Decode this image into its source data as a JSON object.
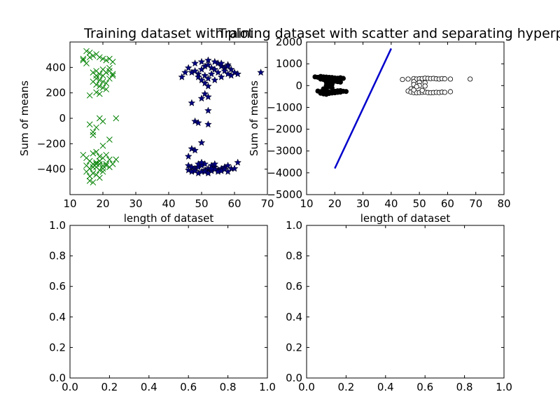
{
  "chart_data": [
    {
      "type": "scatter",
      "title": "Training dataset with plot",
      "xlabel": "length of dataset",
      "ylabel": "Sum of means",
      "xlim": [
        10,
        70
      ],
      "ylim": [
        -500,
        500
      ],
      "xticks": [
        "10",
        "20",
        "30",
        "40",
        "50",
        "60",
        "70"
      ],
      "yticks": [
        "−400",
        "−200",
        "0",
        "200",
        "400"
      ],
      "grid": false,
      "series": [
        {
          "marker": "x",
          "color": "#008000",
          "points": [
            [
              14,
              390
            ],
            [
              15,
              440
            ],
            [
              16,
              430
            ],
            [
              17,
              410
            ],
            [
              14,
              380
            ],
            [
              15,
              360
            ],
            [
              16,
              400
            ],
            [
              18,
              420
            ],
            [
              19,
              400
            ],
            [
              20,
              390
            ],
            [
              21,
              380
            ],
            [
              22,
              390
            ],
            [
              23,
              370
            ],
            [
              17,
              300
            ],
            [
              18,
              310
            ],
            [
              19,
              290
            ],
            [
              20,
              280
            ],
            [
              21,
              300
            ],
            [
              22,
              310
            ],
            [
              23,
              290
            ],
            [
              18,
              260
            ],
            [
              19,
              250
            ],
            [
              20,
              240
            ],
            [
              21,
              230
            ],
            [
              22,
              260
            ],
            [
              18,
              220
            ],
            [
              19,
              210
            ],
            [
              20,
              200
            ],
            [
              21,
              190
            ],
            [
              16,
              150
            ],
            [
              18,
              170
            ],
            [
              19,
              160
            ],
            [
              17,
              240
            ],
            [
              18,
              280
            ],
            [
              20,
              320
            ],
            [
              22,
              330
            ],
            [
              23,
              280
            ],
            [
              19,
              0
            ],
            [
              20,
              -20
            ],
            [
              24,
              0
            ],
            [
              16,
              -40
            ],
            [
              17,
              -90
            ],
            [
              17,
              -110
            ],
            [
              18,
              -60
            ],
            [
              22,
              -140
            ],
            [
              20,
              -180
            ],
            [
              14,
              -240
            ],
            [
              15,
              -260
            ],
            [
              16,
              -280
            ],
            [
              17,
              -230
            ],
            [
              18,
              -220
            ],
            [
              19,
              -250
            ],
            [
              20,
              -260
            ],
            [
              21,
              -240
            ],
            [
              22,
              -270
            ],
            [
              23,
              -300
            ],
            [
              24,
              -270
            ],
            [
              15,
              -310
            ],
            [
              16,
              -330
            ],
            [
              17,
              -320
            ],
            [
              18,
              -300
            ],
            [
              19,
              -340
            ],
            [
              20,
              -330
            ],
            [
              21,
              -310
            ],
            [
              15,
              -350
            ],
            [
              16,
              -380
            ],
            [
              17,
              -360
            ],
            [
              18,
              -370
            ],
            [
              19,
              -390
            ],
            [
              20,
              -350
            ],
            [
              16,
              -410
            ],
            [
              17,
              -420
            ],
            [
              21,
              -300
            ],
            [
              22,
              -320
            ],
            [
              18,
              -290
            ],
            [
              19,
              -280
            ],
            [
              17,
              -300
            ],
            [
              18,
              -320
            ],
            [
              19,
              -300
            ],
            [
              20,
              -310
            ]
          ]
        },
        {
          "marker": "star",
          "color": "#000080",
          "points": [
            [
              44,
              270
            ],
            [
              45,
              300
            ],
            [
              46,
              330
            ],
            [
              47,
              300
            ],
            [
              48,
              310
            ],
            [
              49,
              290
            ],
            [
              50,
              320
            ],
            [
              51,
              340
            ],
            [
              52,
              350
            ],
            [
              53,
              330
            ],
            [
              54,
              320
            ],
            [
              55,
              360
            ],
            [
              56,
              340
            ],
            [
              57,
              330
            ],
            [
              58,
              350
            ],
            [
              59,
              320
            ],
            [
              60,
              300
            ],
            [
              61,
              290
            ],
            [
              68,
              300
            ],
            [
              48,
              360
            ],
            [
              50,
              370
            ],
            [
              52,
              380
            ],
            [
              54,
              370
            ],
            [
              56,
              360
            ],
            [
              58,
              340
            ],
            [
              49,
              270
            ],
            [
              51,
              280
            ],
            [
              53,
              290
            ],
            [
              55,
              300
            ],
            [
              57,
              310
            ],
            [
              59,
              280
            ],
            [
              50,
              250
            ],
            [
              52,
              260
            ],
            [
              54,
              250
            ],
            [
              56,
              270
            ],
            [
              58,
              290
            ],
            [
              51,
              230
            ],
            [
              52,
              210
            ],
            [
              51,
              160
            ],
            [
              52,
              140
            ],
            [
              50,
              130
            ],
            [
              47,
              100
            ],
            [
              52,
              50
            ],
            [
              48,
              -20
            ],
            [
              49,
              -30
            ],
            [
              52,
              -40
            ],
            [
              50,
              -160
            ],
            [
              47,
              -200
            ],
            [
              48,
              -210
            ],
            [
              46,
              -250
            ],
            [
              46,
              -310
            ],
            [
              47,
              -320
            ],
            [
              48,
              -330
            ],
            [
              49,
              -320
            ],
            [
              50,
              -310
            ],
            [
              51,
              -300
            ],
            [
              52,
              -330
            ],
            [
              53,
              -310
            ],
            [
              54,
              -320
            ],
            [
              55,
              -340
            ],
            [
              56,
              -330
            ],
            [
              57,
              -320
            ],
            [
              58,
              -310
            ],
            [
              59,
              -330
            ],
            [
              61,
              -290
            ],
            [
              46,
              -340
            ],
            [
              47,
              -350
            ],
            [
              48,
              -345
            ],
            [
              49,
              -360
            ],
            [
              50,
              -350
            ],
            [
              51,
              -340
            ],
            [
              52,
              -355
            ],
            [
              53,
              -345
            ],
            [
              54,
              -335
            ],
            [
              55,
              -350
            ],
            [
              56,
              -345
            ],
            [
              57,
              -335
            ],
            [
              58,
              -350
            ],
            [
              60,
              -330
            ],
            [
              49,
              -300
            ],
            [
              50,
              -290
            ],
            [
              51,
              -350
            ],
            [
              52,
              -360
            ],
            [
              53,
              -330
            ],
            [
              54,
              -300
            ]
          ]
        }
      ]
    },
    {
      "type": "scatter",
      "title": "Training dataset with scatter and separating hyperplane",
      "xlabel": "length of dataset",
      "ylabel": "Sum of means",
      "xlim": [
        10,
        80
      ],
      "ylim": [
        -5000,
        2000
      ],
      "xticks": [
        "10",
        "20",
        "30",
        "40",
        "50",
        "60",
        "70",
        "80"
      ],
      "yticks": [
        "−5000",
        "−4000",
        "−3000",
        "−2000",
        "−1000",
        "0",
        "1000",
        "2000"
      ],
      "grid": false,
      "line": {
        "color": "#0000cc",
        "x": [
          20,
          40
        ],
        "y": [
          -3800,
          1700
        ]
      },
      "series": [
        {
          "marker": "filled-circle",
          "color": "#000000",
          "points": [
            [
              13,
              400
            ],
            [
              14,
              380
            ],
            [
              15,
              420
            ],
            [
              16,
              400
            ],
            [
              17,
              390
            ],
            [
              18,
              380
            ],
            [
              19,
              370
            ],
            [
              20,
              350
            ],
            [
              21,
              340
            ],
            [
              22,
              360
            ],
            [
              23,
              330
            ],
            [
              15,
              300
            ],
            [
              16,
              280
            ],
            [
              17,
              260
            ],
            [
              18,
              240
            ],
            [
              19,
              220
            ],
            [
              20,
              200
            ],
            [
              21,
              180
            ],
            [
              22,
              160
            ],
            [
              17,
              150
            ],
            [
              18,
              100
            ],
            [
              19,
              50
            ],
            [
              17,
              0
            ],
            [
              18,
              -50
            ],
            [
              19,
              -100
            ],
            [
              16,
              -150
            ],
            [
              17,
              -200
            ],
            [
              14,
              -250
            ],
            [
              15,
              -280
            ],
            [
              16,
              -300
            ],
            [
              17,
              -320
            ],
            [
              18,
              -300
            ],
            [
              19,
              -280
            ],
            [
              20,
              -260
            ],
            [
              21,
              -240
            ],
            [
              22,
              -230
            ],
            [
              24,
              -270
            ],
            [
              15,
              -350
            ],
            [
              16,
              -380
            ],
            [
              17,
              -400
            ],
            [
              18,
              -360
            ],
            [
              19,
              -340
            ],
            [
              20,
              -330
            ],
            [
              21,
              -310
            ],
            [
              22,
              -300
            ],
            [
              23,
              -260
            ],
            [
              16,
              320
            ],
            [
              18,
              310
            ],
            [
              20,
              300
            ],
            [
              22,
              290
            ]
          ]
        },
        {
          "marker": "open-circle",
          "color": "#000000",
          "points": [
            [
              44,
              280
            ],
            [
              46,
              300
            ],
            [
              48,
              320
            ],
            [
              49,
              300
            ],
            [
              50,
              310
            ],
            [
              51,
              320
            ],
            [
              52,
              340
            ],
            [
              53,
              330
            ],
            [
              54,
              320
            ],
            [
              55,
              330
            ],
            [
              56,
              310
            ],
            [
              57,
              300
            ],
            [
              58,
              320
            ],
            [
              59,
              310
            ],
            [
              61,
              300
            ],
            [
              68,
              300
            ],
            [
              48,
              180
            ],
            [
              50,
              150
            ],
            [
              52,
              130
            ],
            [
              48,
              50
            ],
            [
              50,
              0
            ],
            [
              52,
              -20
            ],
            [
              49,
              -50
            ],
            [
              47,
              -150
            ],
            [
              46,
              -250
            ],
            [
              47,
              -300
            ],
            [
              48,
              -320
            ],
            [
              49,
              -330
            ],
            [
              50,
              -320
            ],
            [
              51,
              -310
            ],
            [
              52,
              -300
            ],
            [
              53,
              -320
            ],
            [
              54,
              -330
            ],
            [
              55,
              -320
            ],
            [
              56,
              -310
            ],
            [
              57,
              -320
            ],
            [
              58,
              -300
            ],
            [
              59,
              -310
            ],
            [
              61,
              -280
            ],
            [
              48,
              -200
            ],
            [
              51,
              -220
            ]
          ]
        }
      ]
    },
    {
      "type": "scatter",
      "title": "",
      "xlabel": "",
      "ylabel": "",
      "xlim": [
        0,
        1
      ],
      "ylim": [
        0,
        1
      ],
      "xticks": [
        "0.0",
        "0.2",
        "0.4",
        "0.6",
        "0.8",
        "1.0"
      ],
      "yticks": [
        "0.0",
        "0.2",
        "0.4",
        "0.6",
        "0.8",
        "1.0"
      ],
      "grid": false,
      "series": []
    },
    {
      "type": "scatter",
      "title": "",
      "xlabel": "",
      "ylabel": "",
      "xlim": [
        0,
        1
      ],
      "ylim": [
        0,
        1
      ],
      "xticks": [
        "0.0",
        "0.2",
        "0.4",
        "0.6",
        "0.8",
        "1.0"
      ],
      "yticks": [
        "0.0",
        "0.2",
        "0.4",
        "0.6",
        "0.8",
        "1.0"
      ],
      "grid": false,
      "series": []
    }
  ]
}
